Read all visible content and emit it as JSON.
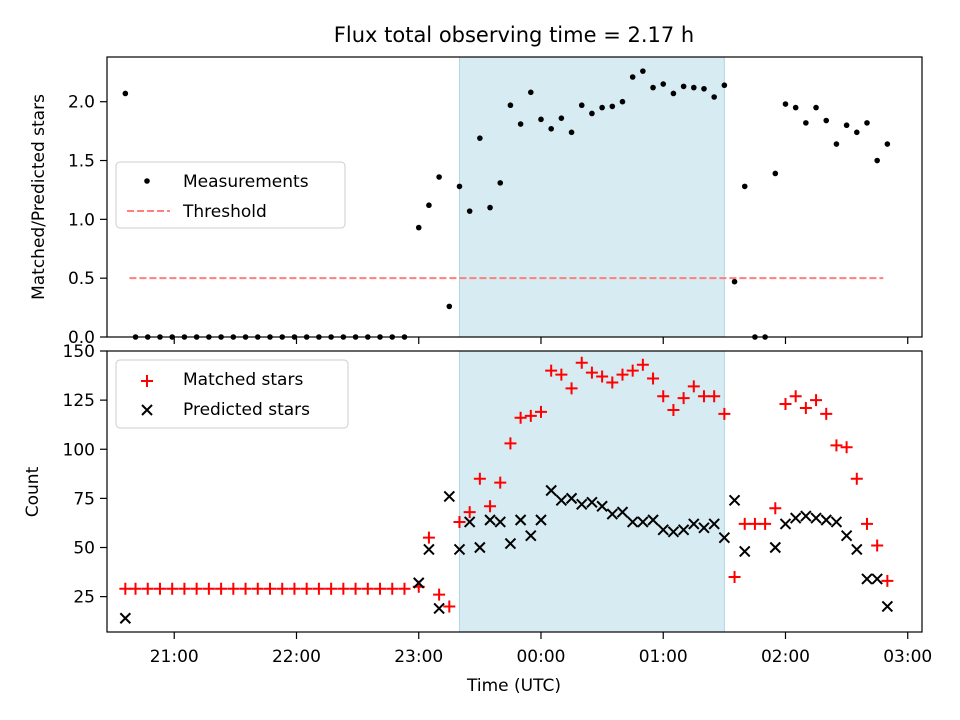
{
  "chart_data": [
    {
      "type": "scatter",
      "title": "Flux total observing time = 2.17 h",
      "ylabel": "Matched/Predicted stars",
      "xlim": [
        "20:27",
        "03:07"
      ],
      "ylim": [
        0,
        2.38
      ],
      "yticks": [
        "0.0",
        "0.5",
        "1.0",
        "1.5",
        "2.0"
      ],
      "highlight_span": {
        "from": "23:20",
        "to": "01:30",
        "color": "#add8e6"
      },
      "legend": {
        "placement": "center-left",
        "entries": [
          "Measurements",
          "Threshold"
        ]
      },
      "threshold": {
        "name": "Threshold",
        "value": 0.5,
        "from": "20:38",
        "to": "02:48",
        "color": "#ff7f7f",
        "style": "dashed"
      },
      "series": [
        {
          "name": "Measurements",
          "color": "#000000",
          "marker": "dot",
          "points": [
            [
              "20:36",
              2.07
            ],
            [
              "20:41",
              0
            ],
            [
              "20:47",
              0
            ],
            [
              "20:53",
              0
            ],
            [
              "20:59",
              0
            ],
            [
              "21:05",
              0
            ],
            [
              "21:11",
              0
            ],
            [
              "21:17",
              0
            ],
            [
              "21:23",
              0
            ],
            [
              "21:29",
              0
            ],
            [
              "21:35",
              0
            ],
            [
              "21:41",
              0
            ],
            [
              "21:47",
              0
            ],
            [
              "21:53",
              0
            ],
            [
              "21:59",
              0
            ],
            [
              "22:05",
              0
            ],
            [
              "22:11",
              0
            ],
            [
              "22:17",
              0
            ],
            [
              "22:23",
              0
            ],
            [
              "22:29",
              0
            ],
            [
              "22:35",
              0
            ],
            [
              "22:41",
              0
            ],
            [
              "22:47",
              0
            ],
            [
              "22:53",
              0
            ],
            [
              "23:00",
              0.93
            ],
            [
              "23:05",
              1.12
            ],
            [
              "23:10",
              1.36
            ],
            [
              "23:15",
              0.26
            ],
            [
              "23:20",
              1.28
            ],
            [
              "23:25",
              1.07
            ],
            [
              "23:30",
              1.69
            ],
            [
              "23:35",
              1.1
            ],
            [
              "23:40",
              1.31
            ],
            [
              "23:45",
              1.97
            ],
            [
              "23:50",
              1.81
            ],
            [
              "23:55",
              2.08
            ],
            [
              "00:00",
              1.85
            ],
            [
              "00:05",
              1.77
            ],
            [
              "00:10",
              1.86
            ],
            [
              "00:15",
              1.74
            ],
            [
              "00:20",
              1.97
            ],
            [
              "00:25",
              1.9
            ],
            [
              "00:30",
              1.95
            ],
            [
              "00:35",
              1.96
            ],
            [
              "00:40",
              2.0
            ],
            [
              "00:45",
              2.21
            ],
            [
              "00:50",
              2.26
            ],
            [
              "00:55",
              2.12
            ],
            [
              "01:00",
              2.15
            ],
            [
              "01:05",
              2.07
            ],
            [
              "01:10",
              2.13
            ],
            [
              "01:15",
              2.12
            ],
            [
              "01:20",
              2.11
            ],
            [
              "01:25",
              2.04
            ],
            [
              "01:30",
              2.14
            ],
            [
              "01:35",
              0.47
            ],
            [
              "01:40",
              1.28
            ],
            [
              "01:45",
              0
            ],
            [
              "01:50",
              0
            ],
            [
              "01:55",
              1.39
            ],
            [
              "02:00",
              1.98
            ],
            [
              "02:05",
              1.95
            ],
            [
              "02:10",
              1.82
            ],
            [
              "02:15",
              1.95
            ],
            [
              "02:20",
              1.84
            ],
            [
              "02:25",
              1.64
            ],
            [
              "02:30",
              1.8
            ],
            [
              "02:35",
              1.74
            ],
            [
              "02:40",
              1.82
            ],
            [
              "02:45",
              1.5
            ],
            [
              "02:50",
              1.64
            ]
          ]
        }
      ]
    },
    {
      "type": "scatter",
      "xlabel": "Time (UTC)",
      "ylabel": "Count",
      "xlim": [
        "20:27",
        "03:07"
      ],
      "ylim": [
        7,
        150
      ],
      "yticks": [
        "25",
        "50",
        "75",
        "100",
        "125",
        "150"
      ],
      "xticks": [
        "21:00",
        "22:00",
        "23:00",
        "00:00",
        "01:00",
        "02:00",
        "03:00"
      ],
      "highlight_span": {
        "from": "23:20",
        "to": "01:30",
        "color": "#add8e6"
      },
      "legend": {
        "placement": "top-left",
        "entries": [
          "Matched stars",
          "Predicted stars"
        ]
      },
      "series": [
        {
          "name": "Matched stars",
          "color": "#ff0000",
          "marker": "plus",
          "points": [
            [
              "20:36",
              29
            ],
            [
              "20:41",
              29
            ],
            [
              "20:47",
              29
            ],
            [
              "20:53",
              29
            ],
            [
              "20:59",
              29
            ],
            [
              "21:05",
              29
            ],
            [
              "21:11",
              29
            ],
            [
              "21:17",
              29
            ],
            [
              "21:23",
              29
            ],
            [
              "21:29",
              29
            ],
            [
              "21:35",
              29
            ],
            [
              "21:41",
              29
            ],
            [
              "21:47",
              29
            ],
            [
              "21:53",
              29
            ],
            [
              "21:59",
              29
            ],
            [
              "22:05",
              29
            ],
            [
              "22:11",
              29
            ],
            [
              "22:17",
              29
            ],
            [
              "22:23",
              29
            ],
            [
              "22:29",
              29
            ],
            [
              "22:35",
              29
            ],
            [
              "22:41",
              29
            ],
            [
              "22:47",
              29
            ],
            [
              "22:53",
              29
            ],
            [
              "23:00",
              30
            ],
            [
              "23:05",
              55
            ],
            [
              "23:10",
              26
            ],
            [
              "23:15",
              20
            ],
            [
              "23:20",
              63
            ],
            [
              "23:25",
              68
            ],
            [
              "23:30",
              85
            ],
            [
              "23:35",
              71
            ],
            [
              "23:40",
              83
            ],
            [
              "23:45",
              103
            ],
            [
              "23:50",
              116
            ],
            [
              "23:55",
              117
            ],
            [
              "00:00",
              119
            ],
            [
              "00:05",
              140
            ],
            [
              "00:10",
              138
            ],
            [
              "00:15",
              131
            ],
            [
              "00:20",
              144
            ],
            [
              "00:25",
              139
            ],
            [
              "00:30",
              137
            ],
            [
              "00:35",
              134
            ],
            [
              "00:40",
              138
            ],
            [
              "00:45",
              140
            ],
            [
              "00:50",
              143
            ],
            [
              "00:55",
              136
            ],
            [
              "01:00",
              127
            ],
            [
              "01:05",
              120
            ],
            [
              "01:10",
              126
            ],
            [
              "01:15",
              132
            ],
            [
              "01:20",
              127
            ],
            [
              "01:25",
              127
            ],
            [
              "01:30",
              118
            ],
            [
              "01:35",
              35
            ],
            [
              "01:40",
              62
            ],
            [
              "01:45",
              62
            ],
            [
              "01:50",
              62
            ],
            [
              "01:55",
              70
            ],
            [
              "02:00",
              123
            ],
            [
              "02:05",
              127
            ],
            [
              "02:10",
              121
            ],
            [
              "02:15",
              125
            ],
            [
              "02:20",
              118
            ],
            [
              "02:25",
              102
            ],
            [
              "02:30",
              101
            ],
            [
              "02:35",
              85
            ],
            [
              "02:40",
              62
            ],
            [
              "02:45",
              51
            ],
            [
              "02:50",
              33
            ]
          ]
        },
        {
          "name": "Predicted stars",
          "color": "#000000",
          "marker": "x",
          "points": [
            [
              "20:36",
              14
            ],
            [
              "23:00",
              32
            ],
            [
              "23:05",
              49
            ],
            [
              "23:10",
              19
            ],
            [
              "23:15",
              76
            ],
            [
              "23:20",
              49
            ],
            [
              "23:25",
              63
            ],
            [
              "23:30",
              50
            ],
            [
              "23:35",
              64
            ],
            [
              "23:40",
              63
            ],
            [
              "23:45",
              52
            ],
            [
              "23:50",
              64
            ],
            [
              "23:55",
              56
            ],
            [
              "00:00",
              64
            ],
            [
              "00:05",
              79
            ],
            [
              "00:10",
              74
            ],
            [
              "00:15",
              75
            ],
            [
              "00:20",
              72
            ],
            [
              "00:25",
              73
            ],
            [
              "00:30",
              71
            ],
            [
              "00:35",
              67
            ],
            [
              "00:40",
              68
            ],
            [
              "00:45",
              63
            ],
            [
              "00:50",
              63
            ],
            [
              "00:55",
              64
            ],
            [
              "01:00",
              59
            ],
            [
              "01:05",
              58
            ],
            [
              "01:10",
              59
            ],
            [
              "01:15",
              62
            ],
            [
              "01:20",
              60
            ],
            [
              "01:25",
              62
            ],
            [
              "01:30",
              55
            ],
            [
              "01:35",
              74
            ],
            [
              "01:40",
              48
            ],
            [
              "01:55",
              50
            ],
            [
              "02:00",
              62
            ],
            [
              "02:05",
              65
            ],
            [
              "02:10",
              66
            ],
            [
              "02:15",
              65
            ],
            [
              "02:20",
              64
            ],
            [
              "02:25",
              63
            ],
            [
              "02:30",
              56
            ],
            [
              "02:35",
              49
            ],
            [
              "02:40",
              34
            ],
            [
              "02:45",
              34
            ],
            [
              "02:50",
              20
            ]
          ]
        }
      ]
    }
  ]
}
